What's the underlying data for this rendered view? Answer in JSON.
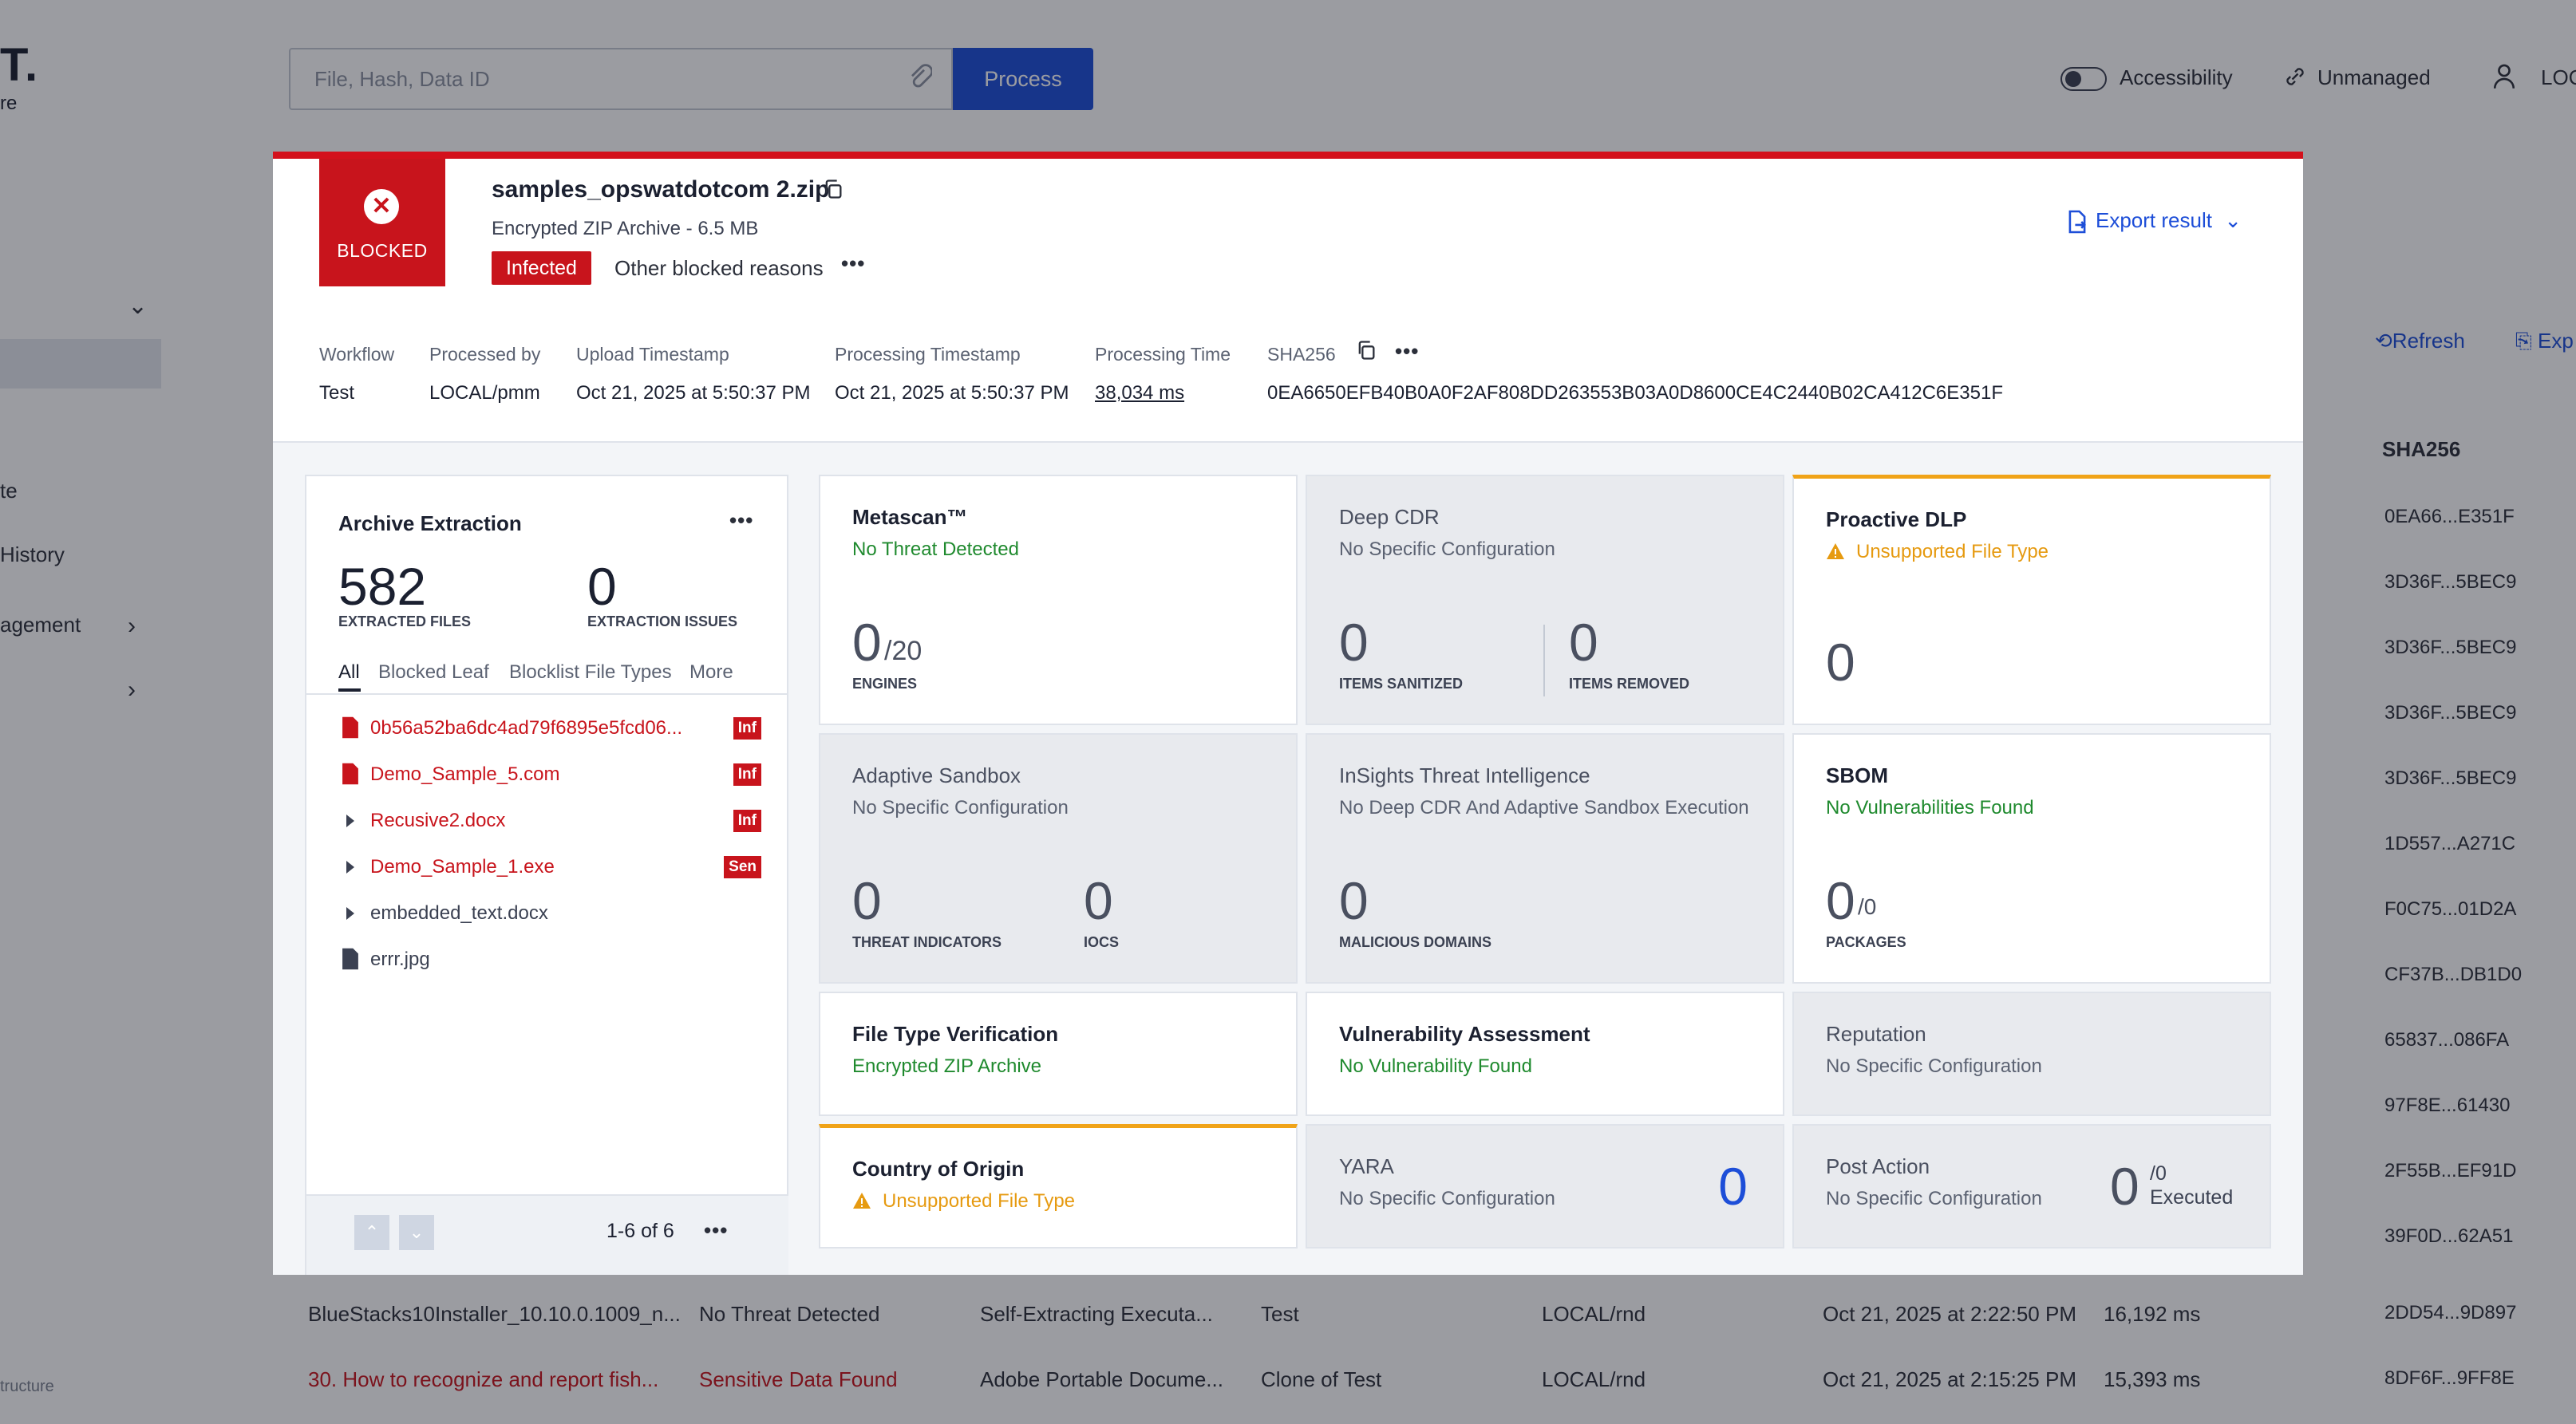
{
  "background": {
    "brand": "T.",
    "brand_sub": "re",
    "sidebar": [
      {
        "label": "te"
      },
      {
        "label": "History"
      },
      {
        "label": "agement"
      },
      {
        "label": ""
      }
    ],
    "sidebar_footer": "tructure",
    "search": {
      "placeholder": "File, Hash, Data ID",
      "button": "Process"
    },
    "header": {
      "accessibility": "Accessibility",
      "unmanaged": "Unmanaged",
      "user": "LOC"
    },
    "refresh": "Refresh",
    "export": "Exp",
    "sha_column": "SHA256",
    "sha_values": [
      "0EA66...E351F",
      "3D36F...5BEC9",
      "3D36F...5BEC9",
      "3D36F...5BEC9",
      "3D36F...5BEC9",
      "1D557...A271C",
      "F0C75...01D2A",
      "CF37B...DB1D0",
      "65837...086FA",
      "97F8E...61430",
      "2F55B...EF91D",
      "39F0D...62A51"
    ],
    "rows": [
      {
        "name": "BlueStacks10Installer_10.10.0.1009_n...",
        "verdict": "No Threat Detected",
        "type": "Self-Extracting Executa...",
        "workflow": "Test",
        "user": "LOCAL/rnd",
        "time": "Oct 21, 2025 at 2:22:50 PM",
        "duration": "16,192 ms",
        "sha": "2DD54...9D897",
        "danger": false
      },
      {
        "name": "30. How to recognize and report fish...",
        "verdict": "Sensitive Data Found",
        "type": "Adobe Portable Docume...",
        "workflow": "Clone of Test",
        "user": "LOCAL/rnd",
        "time": "Oct 21, 2025 at 2:15:25 PM",
        "duration": "15,393 ms",
        "sha": "8DF6F...9FF8E",
        "danger": true
      }
    ]
  },
  "modal": {
    "badge": "BLOCKED",
    "file_name": "samples_opswatdotcom 2.zip",
    "file_type": "Encrypted ZIP Archive - 6.5 MB",
    "tag": "Infected",
    "other_reasons": "Other blocked reasons",
    "export": "Export result",
    "meta": {
      "workflow_label": "Workflow",
      "workflow": "Test",
      "processed_by_label": "Processed by",
      "processed_by": "LOCAL/pmm",
      "upload_label": "Upload Timestamp",
      "upload": "Oct 21, 2025 at 5:50:37 PM",
      "processing_ts_label": "Processing Timestamp",
      "processing_ts": "Oct 21, 2025 at 5:50:37 PM",
      "processing_time_label": "Processing Time",
      "processing_time": "38,034 ms",
      "sha_label": "SHA256",
      "sha": "0EA6650EFB40B0A0F2AF808DD263553B03A0D8600CE4C2440B02CA412C6E351F"
    },
    "archive": {
      "title": "Archive Extraction",
      "extracted": "582",
      "extracted_label": "EXTRACTED FILES",
      "issues": "0",
      "issues_label": "EXTRACTION ISSUES",
      "tabs": [
        "All",
        "Blocked Leaf",
        "Blocklist File Types",
        "More"
      ],
      "files": [
        {
          "name": "0b56a52ba6dc4ad79f6895e5fcd06...",
          "badge": "Inf",
          "kind": "file",
          "danger": true
        },
        {
          "name": "Demo_Sample_5.com",
          "badge": "Inf",
          "kind": "file",
          "danger": true
        },
        {
          "name": "Recusive2.docx",
          "badge": "Inf",
          "kind": "folder",
          "danger": true
        },
        {
          "name": "Demo_Sample_1.exe",
          "badge": "Sen",
          "kind": "folder",
          "danger": true
        },
        {
          "name": "embedded_text.docx",
          "badge": "",
          "kind": "folder",
          "danger": false
        },
        {
          "name": "errr.jpg",
          "badge": "",
          "kind": "file",
          "danger": false
        }
      ],
      "pagination": "1-6 of 6"
    },
    "cards": {
      "metascan": {
        "title": "Metascan™",
        "status": "No Threat Detected",
        "value": "0",
        "total": "/20",
        "caption": "ENGINES"
      },
      "deep_cdr": {
        "title": "Deep CDR",
        "status": "No Specific Configuration",
        "sanitized": "0",
        "sanitized_label": "ITEMS SANITIZED",
        "removed": "0",
        "removed_label": "ITEMS REMOVED"
      },
      "dlp": {
        "title": "Proactive DLP",
        "status": "Unsupported File Type",
        "value": "0"
      },
      "sandbox": {
        "title": "Adaptive Sandbox",
        "status": "No Specific Configuration",
        "threats": "0",
        "threats_label": "THREAT INDICATORS",
        "iocs": "0",
        "iocs_label": "IOCS"
      },
      "insights": {
        "title": "InSights Threat Intelligence",
        "status": "No Deep CDR And Adaptive Sandbox Execution",
        "value": "0",
        "caption": "MALICIOUS DOMAINS"
      },
      "sbom": {
        "title": "SBOM",
        "status": "No Vulnerabilities Found",
        "value": "0",
        "total": "/0",
        "caption": "PACKAGES"
      },
      "ftv": {
        "title": "File Type Verification",
        "status": "Encrypted ZIP Archive"
      },
      "vuln": {
        "title": "Vulnerability Assessment",
        "status": "No Vulnerability Found"
      },
      "reputation": {
        "title": "Reputation",
        "status": "No Specific Configuration"
      },
      "country": {
        "title": "Country of Origin",
        "status": "Unsupported File Type"
      },
      "yara": {
        "title": "YARA",
        "status": "No Specific Configuration",
        "value": "0"
      },
      "post_action": {
        "title": "Post Action",
        "status": "No Specific Configuration",
        "value": "0",
        "total": "/0",
        "executed": "Executed"
      }
    }
  },
  "colors": {
    "danger": "#c8141c",
    "accent": "#1d4ed8",
    "success": "#1f8a2e",
    "warning": "#e69a10"
  }
}
